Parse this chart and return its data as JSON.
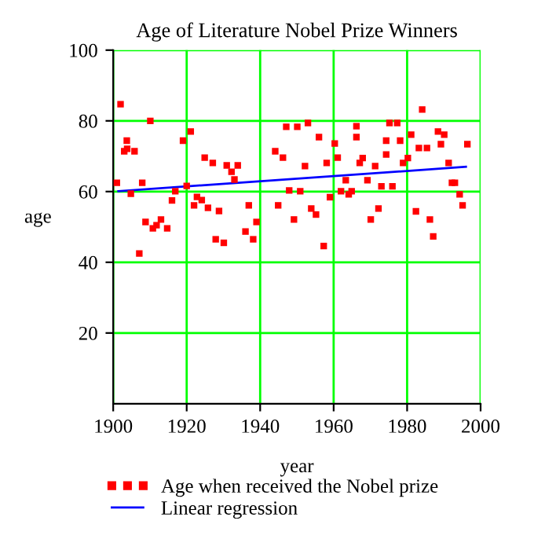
{
  "chart_data": {
    "type": "scatter",
    "title": "Age of Literature Nobel Prize Winners",
    "xlabel": "year",
    "ylabel": "age",
    "xlim": [
      1900,
      2000
    ],
    "xticks": [
      1900,
      1920,
      1940,
      1960,
      1980,
      2000
    ],
    "ylim": [
      0,
      100
    ],
    "yticks": [
      20,
      40,
      60,
      80,
      100
    ],
    "grid": true,
    "legend": "bottom",
    "series": [
      {
        "name": "Age when received the Nobel prize",
        "color": "#ff0000",
        "marker": "square",
        "x": [
          1901,
          1902,
          1903,
          1903.7,
          1903.8,
          1904.8,
          1905.8,
          1907.1,
          1907.9,
          1908.8,
          1910.1,
          1910.8,
          1911.8,
          1913,
          1914.7,
          1916,
          1916.9,
          1919,
          1920,
          1921.1,
          1922,
          1922.8,
          1924.1,
          1924.9,
          1925.8,
          1927.1,
          1927.9,
          1928.8,
          1930.1,
          1930.9,
          1932.2,
          1933,
          1933.9,
          1936,
          1936.9,
          1938.1,
          1939,
          1944.1,
          1944.9,
          1946.2,
          1947.1,
          1947.9,
          1949.2,
          1950.1,
          1950.9,
          1952.2,
          1953,
          1953.9,
          1955.2,
          1956,
          1957.3,
          1958.1,
          1959,
          1960.3,
          1961.1,
          1962,
          1963.3,
          1964.1,
          1964.9,
          1966.2,
          1966.2,
          1967.1,
          1967.9,
          1969.2,
          1970.1,
          1971.3,
          1972.2,
          1973,
          1974.3,
          1974.3,
          1975.2,
          1976,
          1977.3,
          1978.1,
          1978.9,
          1980.2,
          1981.1,
          1982.4,
          1983.2,
          1984.1,
          1985.4,
          1986.2,
          1987.1,
          1988.4,
          1989.2,
          1990.1,
          1991.3,
          1992.2,
          1993,
          1994.3,
          1995.1,
          1996.4
        ],
        "values": [
          62.5,
          84.7,
          71.4,
          74.4,
          72.1,
          59.4,
          71.4,
          42.5,
          62.5,
          51.4,
          80,
          49.6,
          50.5,
          52.1,
          49.6,
          57.5,
          60.1,
          74.4,
          61.6,
          77,
          56.1,
          58.5,
          57.6,
          69.6,
          55.4,
          68.1,
          46.5,
          54.5,
          45.5,
          67.4,
          65.6,
          63.4,
          67.4,
          48.7,
          56.1,
          46.5,
          51.4,
          71.4,
          56.1,
          69.6,
          78.3,
          60.3,
          52.1,
          78.3,
          60.1,
          67.2,
          79.4,
          55.2,
          53.5,
          75.4,
          44.6,
          68.1,
          58.4,
          73.6,
          69.6,
          60.1,
          63.2,
          59.2,
          60.1,
          78.5,
          75.4,
          68.1,
          69.5,
          63.2,
          52.1,
          67.2,
          55.2,
          61.5,
          74.4,
          70.5,
          79.4,
          61.5,
          79.4,
          74.4,
          68.1,
          69.5,
          76.1,
          54.4,
          72.3,
          83.2,
          72.3,
          52.1,
          47.3,
          77,
          73.4,
          76.1,
          68.1,
          62.5,
          62.5,
          59.2,
          56.1,
          73.4
        ]
      },
      {
        "name": "Linear regression",
        "color": "#0000ff",
        "type": "line",
        "x": [
          1901.4,
          1996
        ],
        "values": [
          60.1,
          67
        ]
      }
    ]
  }
}
